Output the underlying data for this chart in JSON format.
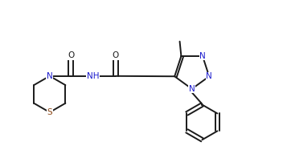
{
  "background": "#ffffff",
  "bond_color": "#1a1a1a",
  "atom_color_N": "#1a1acd",
  "atom_color_S": "#8b4513",
  "atom_color_O": "#1a1a1a",
  "linewidth": 1.4,
  "fontsize": 7.5,
  "xlim": [
    0,
    9
  ],
  "ylim": [
    0,
    5.5
  ]
}
